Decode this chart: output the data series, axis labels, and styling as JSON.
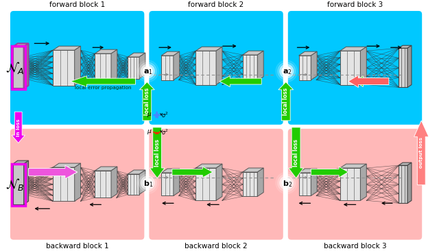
{
  "bg_cyan": "#00C8FF",
  "bg_pink": "#FFB8B8",
  "green": "#22CC00",
  "magenta": "#EE00EE",
  "pink_arrow": "#FF8080",
  "black": "#111111",
  "gray": "#888888",
  "blue_wave": "#4488FF",
  "red_wave": "#FF2200",
  "white": "#FFFFFF",
  "block_labels_top": [
    "forward block 1",
    "forward block 2",
    "forward block 3"
  ],
  "block_labels_bot": [
    "backward block 1",
    "backward block 2",
    "backward block 3"
  ],
  "label_NA": "$\\mathcal{N}_A$",
  "label_NB": "$\\mathcal{N}_B$",
  "label_in_loss": "in loss",
  "label_out_loss": "output loss",
  "label_local_loss": "local loss",
  "label_local_error": "local error propagation",
  "a1_label": "$\\mathbf{a}_1$",
  "a2_label": "$\\mathbf{a}_2$",
  "b1_label": "$\\mathbf{b}_1$",
  "b2_label": "$\\mathbf{b}_2$",
  "mu_label": "$\\mu$",
  "sigma2_label": "$\\sigma^2$"
}
